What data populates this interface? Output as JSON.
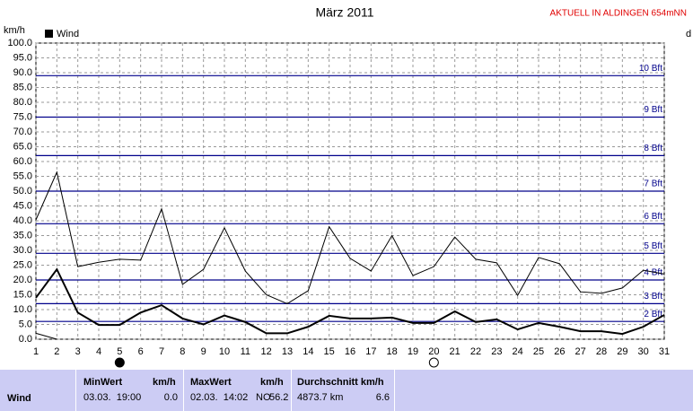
{
  "chart_data": {
    "type": "line",
    "title": "März 2011",
    "station": "AKTUELL IN ALDINGEN 654mNN",
    "y_label": "km/h",
    "right_label": "d",
    "x": [
      1,
      2,
      3,
      4,
      5,
      6,
      7,
      8,
      9,
      10,
      11,
      12,
      13,
      14,
      15,
      16,
      17,
      18,
      19,
      20,
      21,
      22,
      23,
      24,
      25,
      26,
      27,
      28,
      29,
      30,
      31
    ],
    "xlim": [
      1,
      31
    ],
    "xticks": [
      1,
      2,
      3,
      4,
      5,
      6,
      7,
      8,
      9,
      10,
      11,
      12,
      13,
      14,
      15,
      16,
      17,
      18,
      19,
      20,
      21,
      22,
      23,
      24,
      25,
      26,
      27,
      28,
      29,
      30,
      31
    ],
    "ylim": [
      0,
      100
    ],
    "yticks": [
      {
        "value": 0,
        "label": "0.0"
      },
      {
        "value": 5,
        "label": "5.0"
      },
      {
        "value": 10,
        "label": "10.0"
      },
      {
        "value": 15,
        "label": "15.0"
      },
      {
        "value": 20,
        "label": "20.0"
      },
      {
        "value": 25,
        "label": "25.0"
      },
      {
        "value": 30,
        "label": "30.0"
      },
      {
        "value": 35,
        "label": "35.0"
      },
      {
        "value": 40,
        "label": "40.0"
      },
      {
        "value": 45,
        "label": "45.0"
      },
      {
        "value": 50,
        "label": "50.0"
      },
      {
        "value": 55,
        "label": "55.0"
      },
      {
        "value": 60,
        "label": "60.0"
      },
      {
        "value": 65,
        "label": "65.0"
      },
      {
        "value": 70,
        "label": "70.0"
      },
      {
        "value": 75,
        "label": "75.0"
      },
      {
        "value": 80,
        "label": "80.0"
      },
      {
        "value": 85,
        "label": "85.0"
      },
      {
        "value": 90,
        "label": "90.0"
      },
      {
        "value": 95,
        "label": "95.0"
      },
      {
        "value": 100,
        "label": "100.0"
      }
    ],
    "grid": true,
    "series": [
      {
        "name": "Wind",
        "color": "#000000",
        "width": 2,
        "values": [
          14,
          23.6,
          9,
          4.8,
          4.8,
          9,
          11.5,
          7,
          5,
          8,
          5.8,
          2,
          2,
          4.2,
          7.9,
          7,
          7,
          7.3,
          5.5,
          5.5,
          9.4,
          5.8,
          6.7,
          3.3,
          5.5,
          4.2,
          2.7,
          2.7,
          1.8,
          4.2,
          8.2
        ]
      },
      {
        "color": "#000000",
        "width": 1,
        "values": [
          40.3,
          56.4,
          24.5,
          26,
          27,
          26.7,
          44,
          18.5,
          23.6,
          37.6,
          23,
          15,
          12,
          16.4,
          38,
          27.3,
          23,
          35,
          21.5,
          24.5,
          34.5,
          27,
          25.8,
          14.8,
          27.6,
          25.5,
          16,
          15.5,
          17.3,
          23.3,
          22
        ]
      },
      {
        "color": "#000000",
        "width": 1,
        "values": [
          2,
          0,
          null,
          null,
          null,
          null,
          null,
          null,
          null,
          null,
          null,
          null,
          null,
          null,
          null,
          null,
          null,
          null,
          null,
          null,
          null,
          null,
          null,
          null,
          null,
          null,
          null,
          null,
          null,
          null,
          null
        ]
      }
    ],
    "reference_lines": [
      {
        "label": "2 Bft",
        "value": 6
      },
      {
        "label": "3 Bft",
        "value": 12
      },
      {
        "label": "4 Bft",
        "value": 20
      },
      {
        "label": "5 Bft",
        "value": 29
      },
      {
        "label": "6 Bft",
        "value": 39
      },
      {
        "label": "7 Bft",
        "value": 50
      },
      {
        "label": "8 Bft",
        "value": 62
      },
      {
        "label": "9 Bft",
        "value": 75
      },
      {
        "label": "10 Bft",
        "value": 89
      }
    ],
    "reference_color": "#00008b",
    "moon_phases": [
      {
        "x": 5,
        "fill": "#000000"
      },
      {
        "x": 20,
        "fill": "#ffffff"
      }
    ]
  },
  "table": {
    "headers": [
      [
        "MinWert",
        "km/h"
      ],
      [
        "MaxWert",
        "km/h"
      ],
      [
        "Durchschnitt km/h"
      ]
    ],
    "rows": [
      {
        "label": "Wind",
        "min": [
          "03.03.  19:00",
          "0.0"
        ],
        "max": [
          "02.03.  14:02",
          "NO",
          "56.2"
        ],
        "avg": [
          "4873.7 km",
          "6.6"
        ]
      }
    ]
  }
}
